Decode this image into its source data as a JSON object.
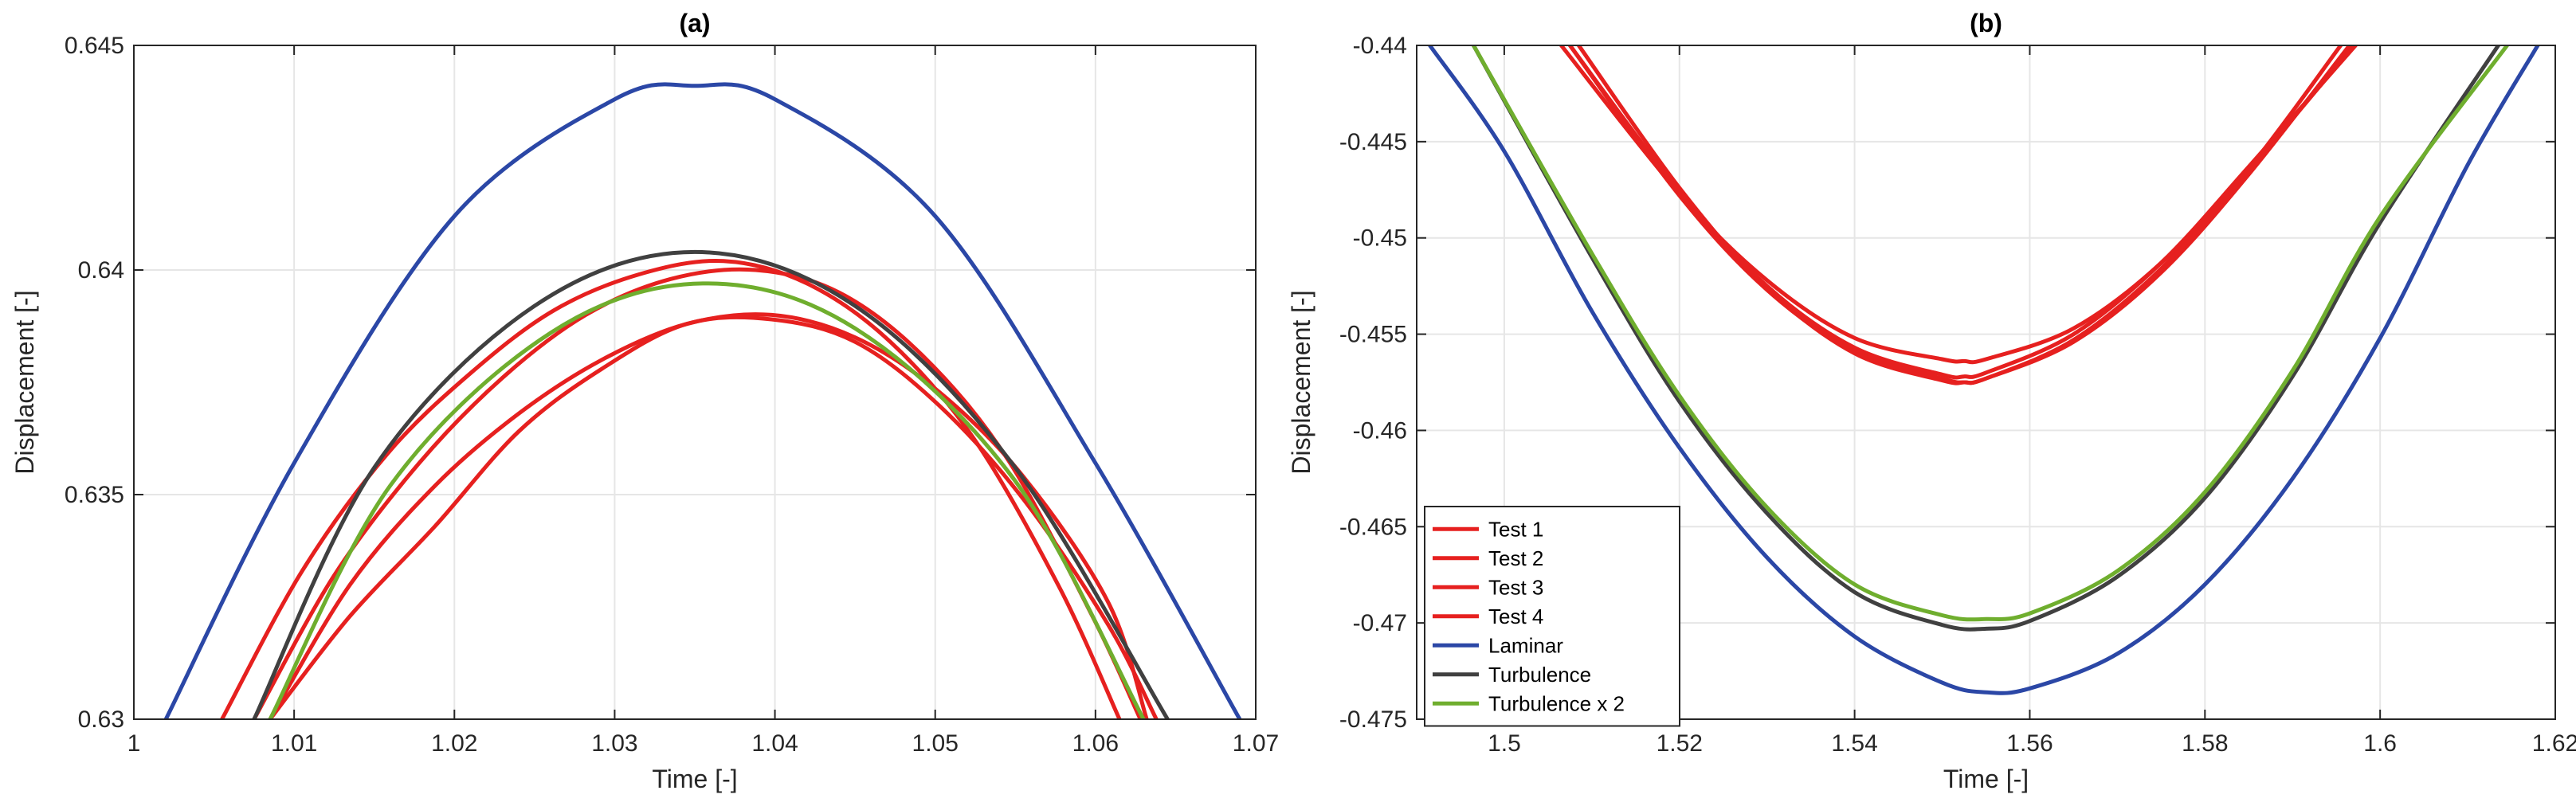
{
  "chart_data": [
    {
      "id": "a",
      "type": "line",
      "title": "(a)",
      "xlabel": "Time [-]",
      "ylabel": "Displacement [-]",
      "xlim": [
        1,
        1.07
      ],
      "ylim": [
        0.63,
        0.645
      ],
      "xticks": [
        1,
        1.01,
        1.02,
        1.03,
        1.04,
        1.05,
        1.06,
        1.07
      ],
      "xtick_labels": [
        "1",
        "1.01",
        "1.02",
        "1.03",
        "1.04",
        "1.05",
        "1.06",
        "1.07"
      ],
      "yticks": [
        0.63,
        0.635,
        0.64,
        0.645
      ],
      "ytick_labels": [
        "0.63",
        "0.635",
        "0.64",
        "0.645"
      ],
      "grid": true,
      "series": [
        {
          "name": "Test 1",
          "color": "#e6201f",
          "x": [
            1.0055,
            1.0105,
            1.0158,
            1.021,
            1.0262,
            1.0315,
            1.0368,
            1.042,
            1.0472,
            1.0525,
            1.0578,
            1.0615
          ],
          "y": [
            0.63,
            0.6333,
            0.6359,
            0.6377,
            0.6391,
            0.6399,
            0.6402,
            0.6397,
            0.6384,
            0.6362,
            0.6329,
            0.63
          ]
        },
        {
          "name": "Test 2",
          "color": "#e6201f",
          "x": [
            1.0075,
            1.0125,
            1.0178,
            1.023,
            1.0282,
            1.0335,
            1.0388,
            1.044,
            1.0492,
            1.0545,
            1.0598,
            1.0628
          ],
          "y": [
            0.63,
            0.6332,
            0.6357,
            0.6376,
            0.639,
            0.6398,
            0.64,
            0.6395,
            0.6381,
            0.6358,
            0.6323,
            0.63
          ]
        },
        {
          "name": "Test 3",
          "color": "#e6201f",
          "x": [
            1.0085,
            1.0135,
            1.0188,
            1.024,
            1.0292,
            1.0345,
            1.0398,
            1.045,
            1.0502,
            1.0555,
            1.0608,
            1.0632
          ],
          "y": [
            0.63,
            0.633,
            0.6352,
            0.6368,
            0.638,
            0.6388,
            0.639,
            0.6385,
            0.6373,
            0.6354,
            0.6326,
            0.63
          ]
        },
        {
          "name": "Test 4",
          "color": "#e6201f",
          "x": [
            1.0085,
            1.0135,
            1.0188,
            1.024,
            1.0292,
            1.0345,
            1.0398,
            1.045,
            1.0502,
            1.0555,
            1.0608,
            1.0638
          ],
          "y": [
            0.63,
            0.6323,
            0.6343,
            0.6364,
            0.6378,
            0.6388,
            0.6389,
            0.6384,
            0.637,
            0.6349,
            0.6321,
            0.63
          ]
        },
        {
          "name": "Laminar",
          "color": "#2b47a6",
          "x": [
            1.002,
            1.01,
            1.02,
            1.03,
            1.035,
            1.04,
            1.05,
            1.06,
            1.069
          ],
          "y": [
            0.63,
            0.6357,
            0.6412,
            0.6438,
            0.6441,
            0.6438,
            0.6412,
            0.6357,
            0.63
          ]
        },
        {
          "name": "Turbulence",
          "color": "#404040",
          "x": [
            1.0075,
            1.015,
            1.025,
            1.035,
            1.045,
            1.055,
            1.0645
          ],
          "y": [
            0.63,
            0.6356,
            0.6392,
            0.6404,
            0.6392,
            0.6356,
            0.63
          ]
        },
        {
          "name": "Turbulence x 2",
          "color": "#6fae2e",
          "x": [
            1.0085,
            1.016,
            1.026,
            1.0355,
            1.045,
            1.055,
            1.063
          ],
          "y": [
            0.63,
            0.6352,
            0.6386,
            0.6397,
            0.6387,
            0.6353,
            0.63
          ]
        }
      ]
    },
    {
      "id": "b",
      "type": "line",
      "title": "(b)",
      "xlabel": "Time [-]",
      "ylabel": "Displacement [-]",
      "xlim": [
        1.49,
        1.62
      ],
      "ylim": [
        -0.475,
        -0.44
      ],
      "xticks": [
        1.5,
        1.52,
        1.54,
        1.56,
        1.58,
        1.6,
        1.62
      ],
      "xtick_labels": [
        "1.5",
        "1.52",
        "1.54",
        "1.56",
        "1.58",
        "1.6",
        "1.62"
      ],
      "yticks": [
        -0.475,
        -0.47,
        -0.465,
        -0.46,
        -0.455,
        -0.45,
        -0.445,
        -0.44
      ],
      "ytick_labels": [
        "-0.475",
        "-0.47",
        "-0.465",
        "-0.46",
        "-0.455",
        "-0.45",
        "-0.445",
        "-0.44"
      ],
      "grid": true,
      "legend_location": "bottom-left",
      "series": [
        {
          "name": "Test 1",
          "color": "#e6201f",
          "x": [
            1.5065,
            1.52,
            1.53,
            1.54,
            1.55,
            1.5525,
            1.555,
            1.565,
            1.575,
            1.585,
            1.5955
          ],
          "y": [
            -0.44,
            -0.4477,
            -0.4522,
            -0.4552,
            -0.4563,
            -0.4564,
            -0.4563,
            -0.4547,
            -0.4513,
            -0.4464,
            -0.44
          ]
        },
        {
          "name": "Test 2",
          "color": "#e6201f",
          "x": [
            1.5075,
            1.52,
            1.53,
            1.54,
            1.55,
            1.5525,
            1.555,
            1.565,
            1.575,
            1.585,
            1.5965
          ],
          "y": [
            -0.44,
            -0.4478,
            -0.4527,
            -0.4559,
            -0.4573,
            -0.4575,
            -0.4573,
            -0.4554,
            -0.4518,
            -0.4467,
            -0.44
          ]
        },
        {
          "name": "Test 3",
          "color": "#e6201f",
          "x": [
            1.5085,
            1.52,
            1.53,
            1.54,
            1.55,
            1.5525,
            1.555,
            1.565,
            1.575,
            1.585,
            1.597
          ],
          "y": [
            -0.44,
            -0.4474,
            -0.4526,
            -0.456,
            -0.4574,
            -0.4575,
            -0.4573,
            -0.4553,
            -0.4516,
            -0.4465,
            -0.44
          ]
        },
        {
          "name": "Test 4",
          "color": "#e6201f",
          "x": [
            1.5075,
            1.52,
            1.53,
            1.54,
            1.55,
            1.5525,
            1.555,
            1.565,
            1.575,
            1.585,
            1.5972
          ],
          "y": [
            -0.44,
            -0.4476,
            -0.4525,
            -0.4557,
            -0.4571,
            -0.4572,
            -0.457,
            -0.455,
            -0.4513,
            -0.4463,
            -0.44
          ]
        },
        {
          "name": "Laminar",
          "color": "#2b47a6",
          "x": [
            1.4915,
            1.5,
            1.51,
            1.52,
            1.53,
            1.54,
            1.55,
            1.555,
            1.56,
            1.57,
            1.58,
            1.59,
            1.6,
            1.61,
            1.618
          ],
          "y": [
            -0.44,
            -0.4455,
            -0.4538,
            -0.4609,
            -0.4666,
            -0.4707,
            -0.4731,
            -0.4736,
            -0.4734,
            -0.4716,
            -0.468,
            -0.4625,
            -0.4552,
            -0.4462,
            -0.44
          ]
        },
        {
          "name": "Turbulence",
          "color": "#404040",
          "x": [
            1.4965,
            1.51,
            1.52,
            1.53,
            1.54,
            1.55,
            1.555,
            1.56,
            1.57,
            1.58,
            1.59,
            1.6,
            1.6135
          ],
          "y": [
            -0.44,
            -0.451,
            -0.4585,
            -0.4643,
            -0.4684,
            -0.4701,
            -0.4703,
            -0.4699,
            -0.4676,
            -0.4635,
            -0.4572,
            -0.4492,
            -0.44
          ]
        },
        {
          "name": "Turbulence x 2",
          "color": "#6fae2e",
          "x": [
            1.4965,
            1.51,
            1.52,
            1.53,
            1.54,
            1.55,
            1.555,
            1.56,
            1.57,
            1.58,
            1.59,
            1.6,
            1.6145
          ],
          "y": [
            -0.44,
            -0.4508,
            -0.4582,
            -0.464,
            -0.468,
            -0.4696,
            -0.4698,
            -0.4695,
            -0.4673,
            -0.4632,
            -0.4569,
            -0.4489,
            -0.44
          ]
        }
      ]
    }
  ]
}
